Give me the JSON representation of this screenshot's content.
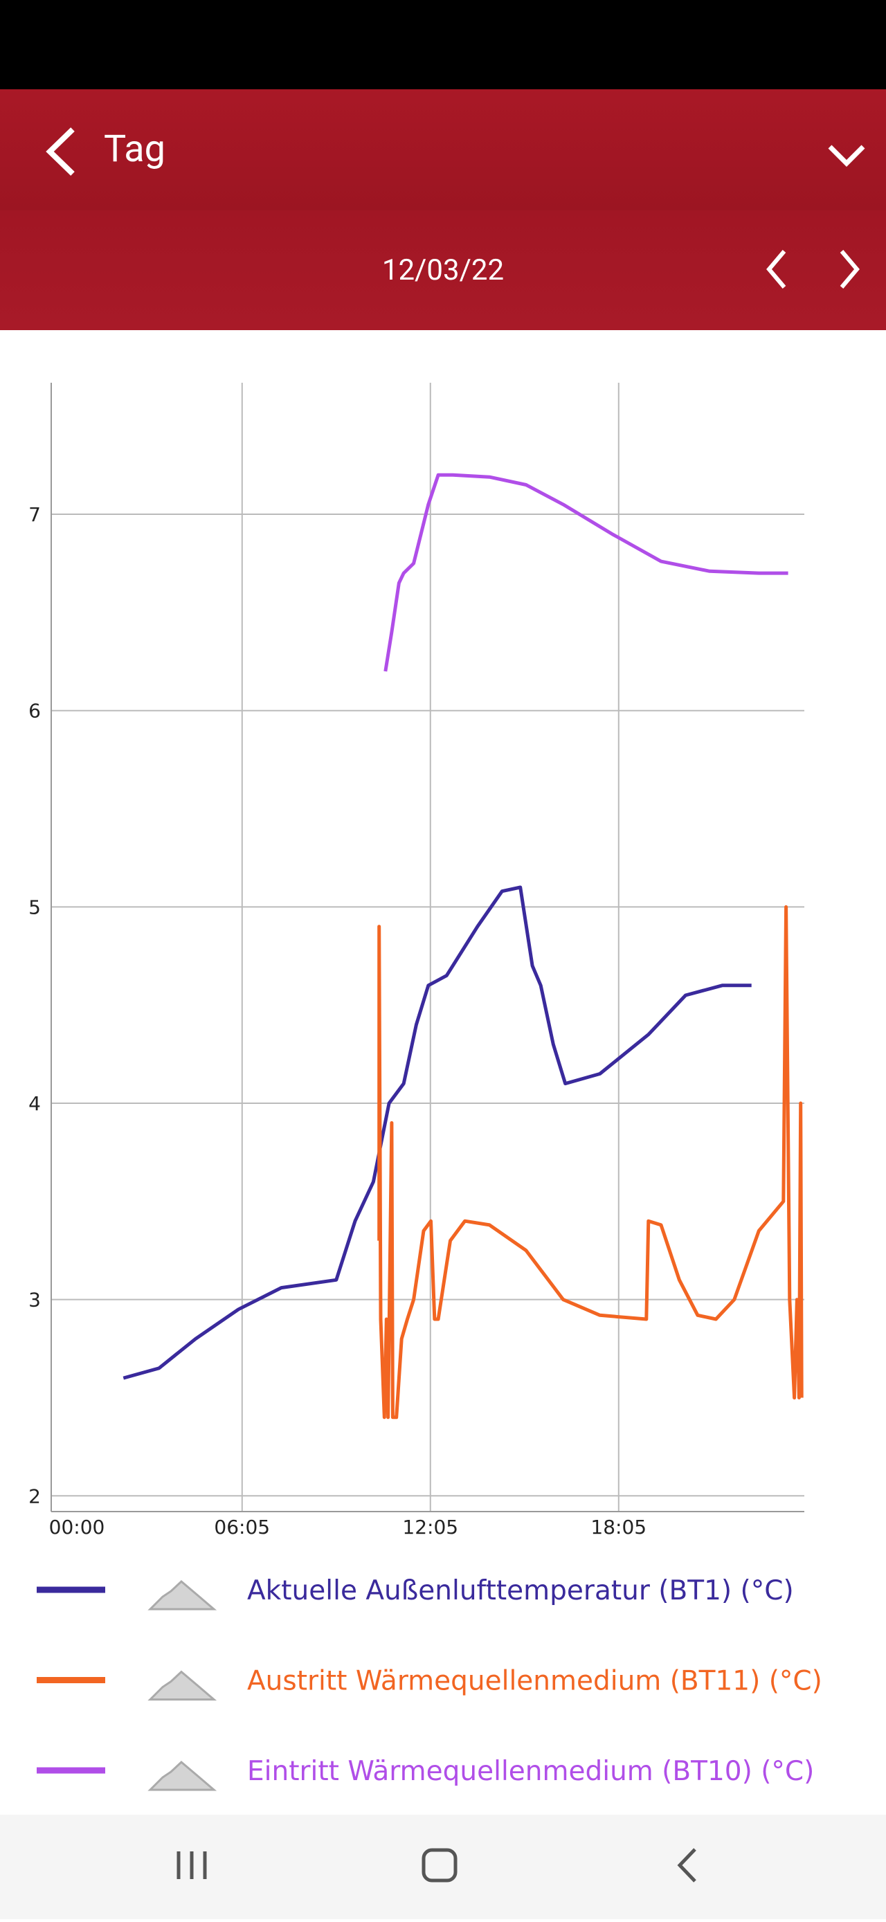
{
  "header": {
    "title": "Tag",
    "date": "12/03/22"
  },
  "chart_data": {
    "type": "line",
    "xlim": [
      0,
      1440
    ],
    "xticks": [
      {
        "value": 0,
        "label": "00:00"
      },
      {
        "value": 365,
        "label": "06:05"
      },
      {
        "value": 725,
        "label": "12:05"
      },
      {
        "value": 1085,
        "label": "18:05"
      }
    ],
    "ylim": [
      1.92,
      7.67
    ],
    "yticks": [
      2,
      3,
      4,
      5,
      6,
      7
    ],
    "grid": true,
    "series": [
      {
        "name": "Aktuelle Außenlufttemperatur (BT1) (°C)",
        "color": "#3a2a9c",
        "x": [
          138,
          206,
          276,
          358,
          440,
          545,
          581,
          616,
          646,
          674,
          698,
          721,
          756,
          815,
          862,
          897,
          920,
          936,
          960,
          983,
          1049,
          1142,
          1213,
          1283,
          1339
        ],
        "values": [
          2.6,
          2.65,
          2.8,
          2.95,
          3.06,
          3.1,
          3.4,
          3.6,
          4.0,
          4.1,
          4.4,
          4.6,
          4.65,
          4.9,
          5.08,
          5.1,
          4.7,
          4.6,
          4.3,
          4.1,
          4.15,
          4.35,
          4.55,
          4.6,
          4.6
        ]
      },
      {
        "name": "Austritt Wärmequellenmedium (BT11) (°C)",
        "color": "#f26522",
        "x": [
          627,
          627,
          630,
          637,
          641,
          644,
          651,
          653,
          660,
          670,
          681,
          693,
          712,
          726,
          733,
          740,
          763,
          791,
          838,
          908,
          979,
          1049,
          1138,
          1142,
          1166,
          1201,
          1236,
          1271,
          1306,
          1353,
          1400,
          1405,
          1412,
          1421,
          1426,
          1430,
          1433,
          1435
        ],
        "values": [
          3.3,
          4.9,
          2.9,
          2.4,
          2.9,
          2.4,
          3.9,
          2.4,
          2.4,
          2.8,
          2.9,
          3.0,
          3.35,
          3.4,
          2.9,
          2.9,
          3.3,
          3.4,
          3.38,
          3.25,
          3.0,
          2.92,
          2.9,
          3.4,
          3.38,
          3.1,
          2.92,
          2.9,
          3.0,
          3.35,
          3.5,
          5.0,
          3.0,
          2.5,
          3.0,
          2.5,
          4.0,
          2.5
        ]
      },
      {
        "name": "Eintritt Wärmequellenmedium (BT10) (°C)",
        "color": "#b04ee8",
        "x": [
          639,
          651,
          665,
          674,
          693,
          721,
          740,
          768,
          838,
          908,
          979,
          1072,
          1166,
          1259,
          1353,
          1409
        ],
        "values": [
          6.2,
          6.4,
          6.65,
          6.7,
          6.75,
          7.05,
          7.2,
          7.2,
          7.19,
          7.15,
          7.05,
          6.9,
          6.76,
          6.71,
          6.7,
          6.7
        ]
      }
    ]
  }
}
